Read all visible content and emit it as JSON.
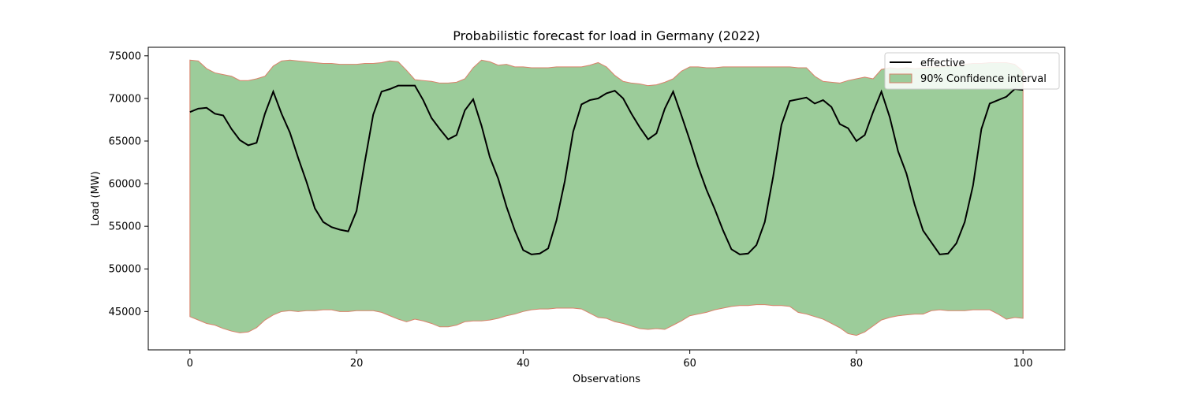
{
  "chart_data": {
    "type": "line",
    "title": "Probabilistic forecast for load in Germany (2022)",
    "xlabel": "Observations",
    "ylabel": "Load (MW)",
    "xlim": [
      -5,
      105
    ],
    "ylim": [
      40500,
      76000
    ],
    "xticks": [
      0,
      20,
      40,
      60,
      80,
      100
    ],
    "yticks": [
      45000,
      50000,
      55000,
      60000,
      65000,
      70000,
      75000
    ],
    "legend_position": "top-right",
    "colors": {
      "line": "#000000",
      "band_fill": "#9ccc9a",
      "band_edge": "#d9826b"
    },
    "x": [
      0,
      1,
      2,
      3,
      4,
      5,
      6,
      7,
      8,
      9,
      10,
      11,
      12,
      13,
      14,
      15,
      16,
      17,
      18,
      19,
      20,
      21,
      22,
      23,
      24,
      25,
      26,
      27,
      28,
      29,
      30,
      31,
      32,
      33,
      34,
      35,
      36,
      37,
      38,
      39,
      40,
      41,
      42,
      43,
      44,
      45,
      46,
      47,
      48,
      49,
      50,
      51,
      52,
      53,
      54,
      55,
      56,
      57,
      58,
      59,
      60,
      61,
      62,
      63,
      64,
      65,
      66,
      67,
      68,
      69,
      70,
      71,
      72,
      73,
      74,
      75,
      76,
      77,
      78,
      79,
      80,
      81,
      82,
      83,
      84,
      85,
      86,
      87,
      88,
      89,
      90,
      91,
      92,
      93,
      94,
      95,
      96,
      97,
      98,
      99,
      100
    ],
    "series": [
      {
        "name": "effective",
        "values": [
          68400,
          68800,
          68900,
          68200,
          68000,
          66400,
          65100,
          64500,
          64800,
          68200,
          70800,
          68200,
          66000,
          63000,
          60200,
          57100,
          55500,
          54900,
          54600,
          54400,
          56800,
          62600,
          68100,
          70800,
          71100,
          71500,
          71500,
          71500,
          69800,
          67700,
          66400,
          65200,
          65700,
          68600,
          69900,
          66800,
          63100,
          60600,
          57300,
          54500,
          52200,
          51700,
          51800,
          52400,
          55700,
          60300,
          66100,
          69300,
          69800,
          70000,
          70600,
          70900,
          70000,
          68200,
          66600,
          65200,
          65900,
          68800,
          70800,
          68000,
          65100,
          62000,
          59300,
          57000,
          54500,
          52300,
          51700,
          51800,
          52800,
          55500,
          60800,
          66900,
          69700,
          69900,
          70100,
          69400,
          69800,
          69000,
          67000,
          66500,
          65000,
          65700,
          68400,
          70800,
          67800,
          63800,
          61200,
          57500,
          54500,
          53100,
          51700,
          51800,
          53000,
          55500,
          59800,
          66400,
          69400,
          69800,
          70200,
          71100,
          71000
        ]
      },
      {
        "name": "90% Confidence interval",
        "lower": [
          44400,
          44000,
          43600,
          43400,
          43000,
          42700,
          42500,
          42600,
          43100,
          44000,
          44600,
          45000,
          45100,
          45000,
          45100,
          45100,
          45200,
          45200,
          45000,
          45000,
          45100,
          45100,
          45100,
          44900,
          44500,
          44100,
          43800,
          44100,
          43900,
          43600,
          43200,
          43200,
          43400,
          43800,
          43900,
          43900,
          44000,
          44200,
          44500,
          44700,
          45000,
          45200,
          45300,
          45300,
          45400,
          45400,
          45400,
          45300,
          44800,
          44300,
          44200,
          43800,
          43600,
          43300,
          43000,
          42900,
          43000,
          42900,
          43400,
          43900,
          44500,
          44700,
          44900,
          45200,
          45400,
          45600,
          45700,
          45700,
          45800,
          45800,
          45700,
          45700,
          45600,
          44900,
          44700,
          44400,
          44100,
          43600,
          43100,
          42400,
          42200,
          42600,
          43300,
          44000,
          44300,
          44500,
          44600,
          44700,
          44700,
          45100,
          45200,
          45100,
          45100,
          45100,
          45200,
          45200,
          45200,
          44700,
          44100,
          44300,
          44200
        ],
        "upper": [
          74500,
          74400,
          73500,
          73000,
          72800,
          72600,
          72100,
          72100,
          72300,
          72600,
          73800,
          74400,
          74500,
          74400,
          74300,
          74200,
          74100,
          74100,
          74000,
          74000,
          74000,
          74100,
          74100,
          74200,
          74400,
          74300,
          73300,
          72200,
          72100,
          72000,
          71800,
          71800,
          71900,
          72300,
          73600,
          74500,
          74300,
          73900,
          74000,
          73700,
          73700,
          73600,
          73600,
          73600,
          73700,
          73700,
          73700,
          73700,
          73900,
          74200,
          73700,
          72700,
          72000,
          71800,
          71700,
          71500,
          71600,
          71900,
          72300,
          73200,
          73700,
          73700,
          73600,
          73600,
          73700,
          73700,
          73700,
          73700,
          73700,
          73700,
          73700,
          73700,
          73700,
          73600,
          73600,
          72600,
          72000,
          71900,
          71800,
          72100,
          72300,
          72500,
          72300,
          73400,
          73600,
          73500,
          73600,
          73500,
          73600,
          73700,
          73700,
          73800,
          73800,
          74000,
          74100,
          74100,
          74200,
          74200,
          74200,
          74000,
          73200
        ]
      }
    ]
  }
}
